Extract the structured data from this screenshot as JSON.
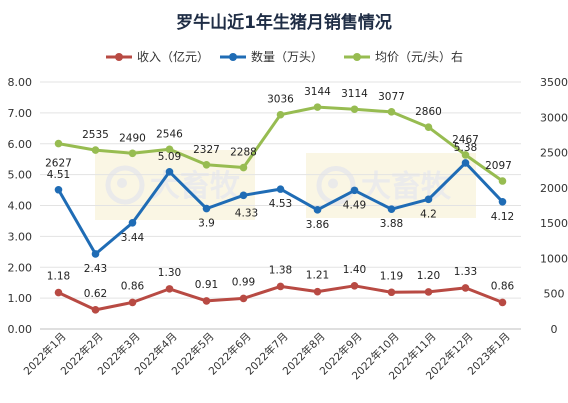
{
  "chart_data": {
    "type": "line",
    "title": "罗牛山近1年生猪月销售情况",
    "categories": [
      "2022年1月",
      "2022年2月",
      "2022年3月",
      "2022年4月",
      "2022年5月",
      "2022年6月",
      "2022年7月",
      "2022年8月",
      "2022年9月",
      "2022年10月",
      "2022年11月",
      "2022年12月",
      "2023年1月"
    ],
    "left_axis": {
      "ticks": [
        "0.00",
        "1.00",
        "2.00",
        "3.00",
        "4.00",
        "5.00",
        "6.00",
        "7.00",
        "8.00"
      ],
      "ylim": [
        0,
        8
      ]
    },
    "right_axis": {
      "ticks": [
        "0",
        "500",
        "1000",
        "1500",
        "2000",
        "2500",
        "3000",
        "3500"
      ],
      "ylim": [
        0,
        3500
      ]
    },
    "series": [
      {
        "name": "收入（亿元）",
        "axis": "left",
        "color": "#b84a43",
        "values": [
          1.18,
          0.62,
          0.86,
          1.3,
          0.91,
          0.99,
          1.38,
          1.21,
          1.4,
          1.19,
          1.2,
          1.33,
          0.86
        ],
        "labels": [
          "1.18",
          "0.62",
          "0.86",
          "1.30",
          "0.91",
          "0.99",
          "1.38",
          "1.21",
          "1.40",
          "1.19",
          "1.20",
          "1.33",
          "0.86"
        ]
      },
      {
        "name": "数量（万头）",
        "axis": "left",
        "color": "#1f6cb5",
        "values": [
          4.51,
          2.43,
          3.44,
          5.09,
          3.9,
          4.33,
          4.53,
          3.86,
          4.49,
          3.88,
          4.2,
          5.38,
          4.12
        ],
        "labels": [
          "4.51",
          "2.43",
          "3.44",
          "5.09",
          "3.9",
          "4.33",
          "4.53",
          "3.86",
          "4.49",
          "3.88",
          "4.2",
          "5.38",
          "4.12"
        ]
      },
      {
        "name": "均价（元/头）右",
        "axis": "right",
        "color": "#97bc51",
        "values": [
          2627,
          2535,
          2490,
          2546,
          2327,
          2288,
          3036,
          3144,
          3114,
          3077,
          2860,
          2467,
          2097
        ],
        "labels": [
          "2627",
          "2535",
          "2490",
          "2546",
          "2327",
          "2288",
          "3036",
          "3144",
          "3114",
          "3077",
          "2860",
          "2467",
          "2097"
        ]
      }
    ],
    "legend_position": "top",
    "grid": true
  },
  "watermark": {
    "text": "大畜牧"
  }
}
